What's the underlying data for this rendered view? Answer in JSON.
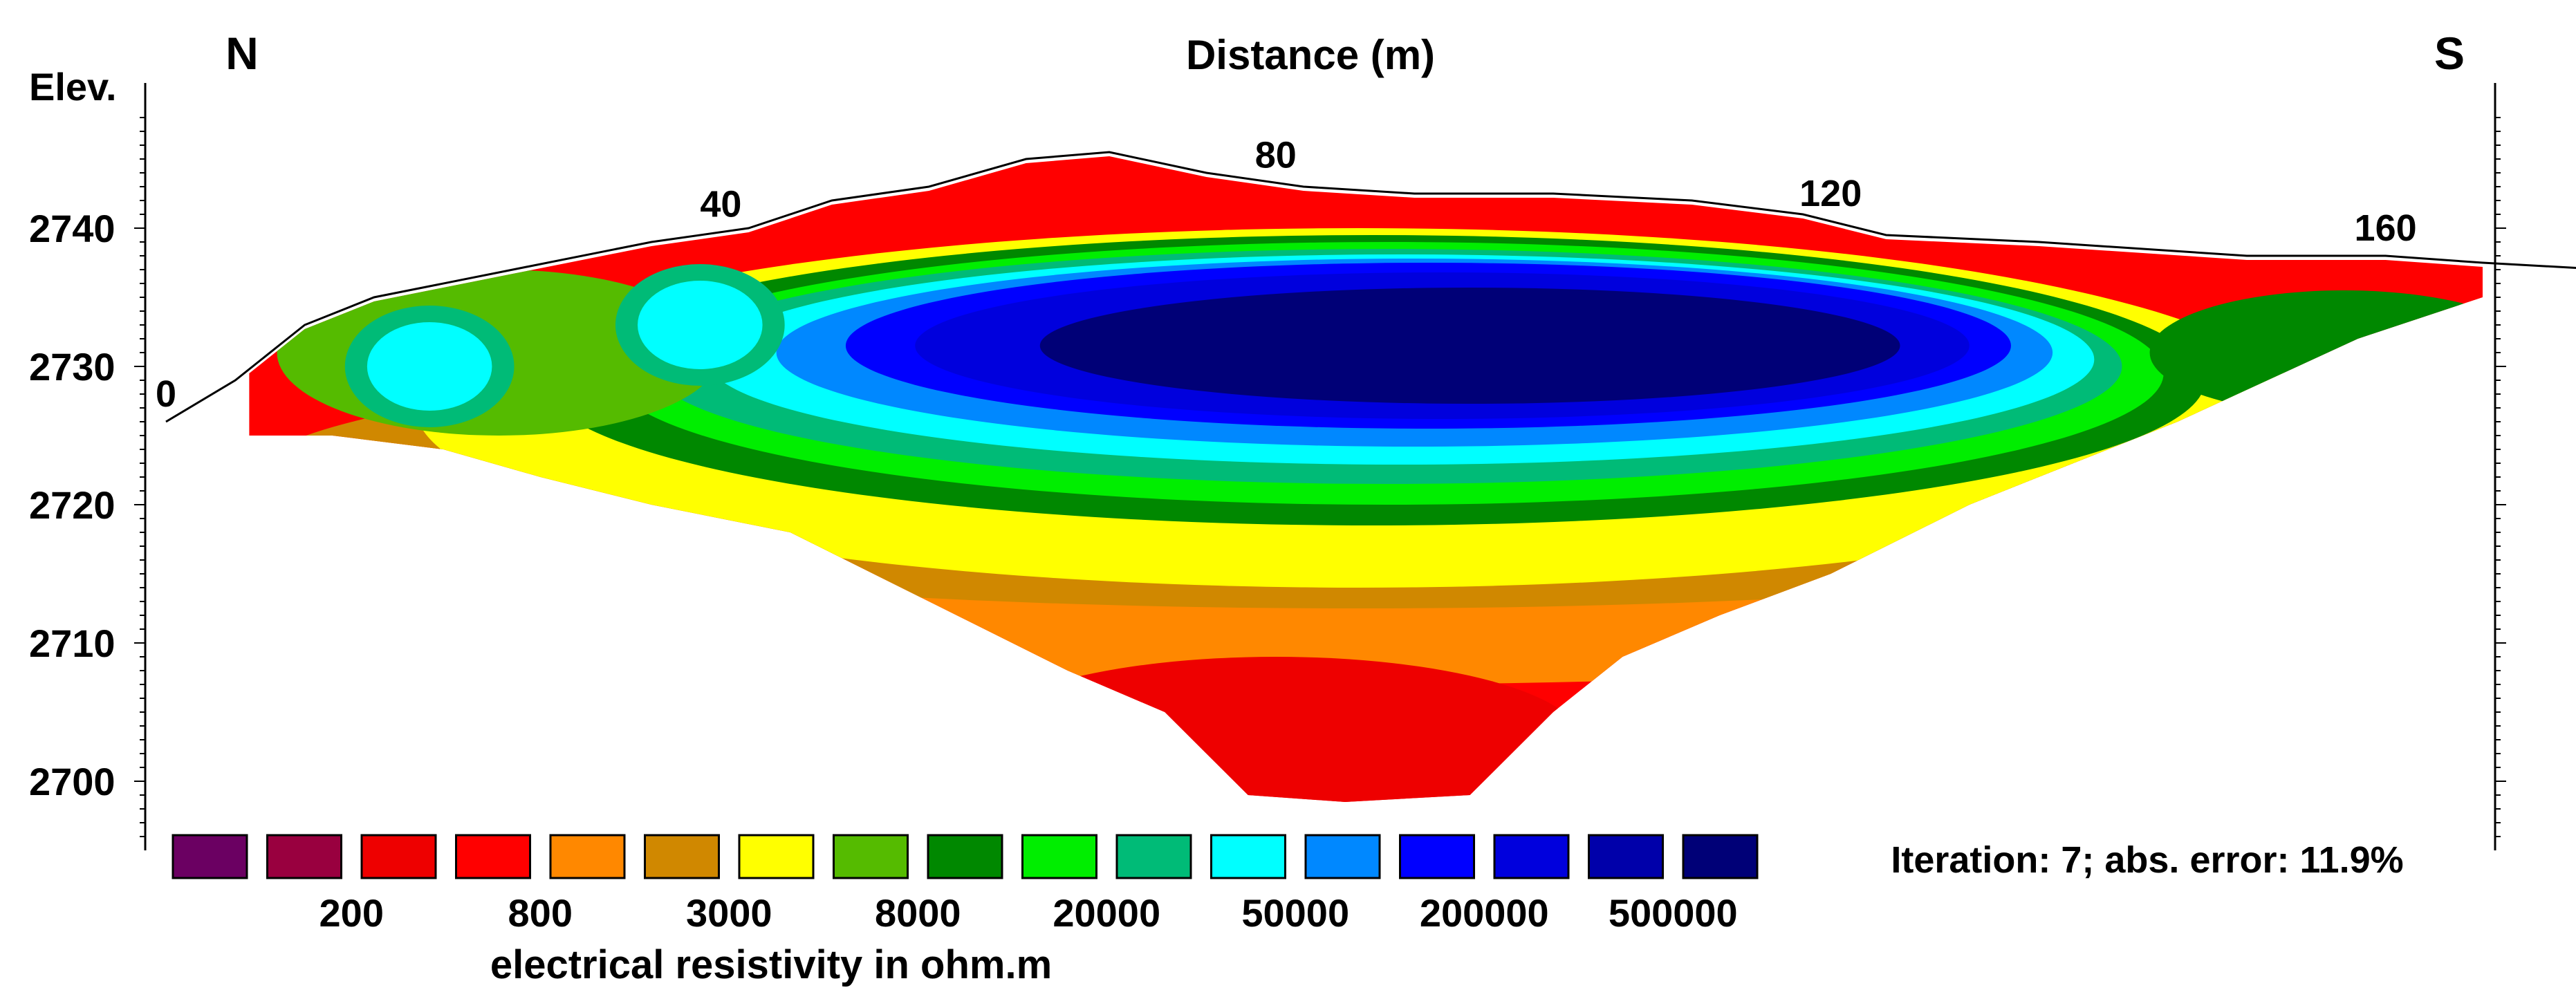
{
  "chart_data": {
    "type": "heatmap",
    "title": "Distance (m)",
    "orientation_left": "N",
    "orientation_right": "S",
    "ylabel": "Elev.",
    "xlim": [
      0,
      176
    ],
    "ylim": [
      2695,
      2750
    ],
    "x_ticks": [
      {
        "value": 0,
        "label": "0"
      },
      {
        "value": 40,
        "label": "40"
      },
      {
        "value": 80,
        "label": "80"
      },
      {
        "value": 120,
        "label": "120"
      },
      {
        "value": 160,
        "label": "160"
      }
    ],
    "y_ticks": [
      2740,
      2730,
      2720,
      2710,
      2700
    ],
    "surface_profile": [
      {
        "x": 0,
        "elev": 2726
      },
      {
        "x": 5,
        "elev": 2729
      },
      {
        "x": 10,
        "elev": 2733
      },
      {
        "x": 15,
        "elev": 2735
      },
      {
        "x": 25,
        "elev": 2737
      },
      {
        "x": 35,
        "elev": 2739
      },
      {
        "x": 42,
        "elev": 2740
      },
      {
        "x": 48,
        "elev": 2742
      },
      {
        "x": 55,
        "elev": 2743
      },
      {
        "x": 62,
        "elev": 2745
      },
      {
        "x": 68,
        "elev": 2745.5
      },
      {
        "x": 75,
        "elev": 2744
      },
      {
        "x": 82,
        "elev": 2743
      },
      {
        "x": 90,
        "elev": 2742.5
      },
      {
        "x": 100,
        "elev": 2742.5
      },
      {
        "x": 110,
        "elev": 2742
      },
      {
        "x": 118,
        "elev": 2741
      },
      {
        "x": 124,
        "elev": 2739.5
      },
      {
        "x": 135,
        "elev": 2739
      },
      {
        "x": 150,
        "elev": 2738
      },
      {
        "x": 160,
        "elev": 2738
      },
      {
        "x": 167,
        "elev": 2737.5
      },
      {
        "x": 176,
        "elev": 2737
      }
    ],
    "model_bottom": [
      {
        "x": 6,
        "elev": 2725
      },
      {
        "x": 12,
        "elev": 2725
      },
      {
        "x": 20,
        "elev": 2724
      },
      {
        "x": 27,
        "elev": 2722
      },
      {
        "x": 35,
        "elev": 2720
      },
      {
        "x": 45,
        "elev": 2718
      },
      {
        "x": 55,
        "elev": 2713
      },
      {
        "x": 65,
        "elev": 2708
      },
      {
        "x": 72,
        "elev": 2705
      },
      {
        "x": 78,
        "elev": 2699
      },
      {
        "x": 85,
        "elev": 2698.5
      },
      {
        "x": 94,
        "elev": 2699
      },
      {
        "x": 100,
        "elev": 2705
      },
      {
        "x": 105,
        "elev": 2709
      },
      {
        "x": 112,
        "elev": 2712
      },
      {
        "x": 120,
        "elev": 2715
      },
      {
        "x": 130,
        "elev": 2720
      },
      {
        "x": 145,
        "elev": 2726
      },
      {
        "x": 158,
        "elev": 2732
      },
      {
        "x": 167,
        "elev": 2735
      }
    ],
    "shallow_highs": [
      {
        "cx": 19,
        "celev": 2730,
        "rx": 4.5,
        "relev": 3.2,
        "color": "#00ffff"
      },
      {
        "cx": 38.5,
        "celev": 2733,
        "rx": 4.5,
        "relev": 3.2,
        "color": "#00ffff"
      }
    ],
    "legend": {
      "colors": [
        "#6b0062",
        "#99003f",
        "#ee0000",
        "#ff0000",
        "#ff8800",
        "#d08800",
        "#ffff00",
        "#55bb00",
        "#008800",
        "#00ee00",
        "#00bb77",
        "#00ffff",
        "#0088ff",
        "#0000ff",
        "#0000dd",
        "#0000aa",
        "#000077"
      ],
      "labels": [
        {
          "text": "200",
          "index": 1
        },
        {
          "text": "800",
          "index": 3
        },
        {
          "text": "3000",
          "index": 5
        },
        {
          "text": "8000",
          "index": 7
        },
        {
          "text": "20000",
          "index": 9
        },
        {
          "text": "50000",
          "index": 11
        },
        {
          "text": "200000",
          "index": 13
        },
        {
          "text": "500000",
          "index": 15
        }
      ],
      "title": "electrical resistivity in ohm.m"
    },
    "annotation": "Iteration: 7; abs. error: 11.9%"
  }
}
